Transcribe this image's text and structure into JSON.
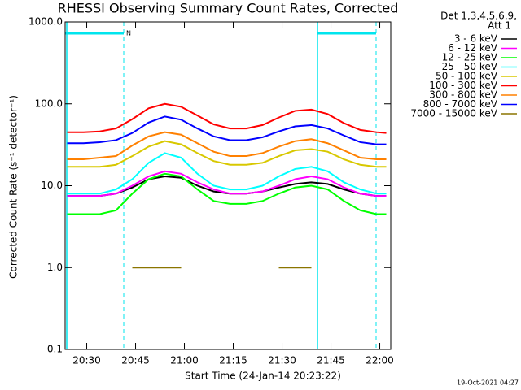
{
  "chart_data": {
    "type": "line",
    "title": "RHESSI Observing Summary Count Rates, Corrected",
    "xlabel": "Start Time (24-Jan-14 20:23:22)",
    "ylabel": "Corrected Count Rate (s⁻¹ detector⁻¹)",
    "legend_header": [
      "Det 1,3,4,5,6,9,",
      "Att 1"
    ],
    "timestamp": "19-Oct-2021 04:27",
    "annotation": "N",
    "log_y": true,
    "xlim": [
      23.37,
      123.37
    ],
    "ylim": [
      0.1,
      1000
    ],
    "xticks": [
      {
        "value": 30,
        "label": "20:30"
      },
      {
        "value": 45,
        "label": "20:45"
      },
      {
        "value": 60,
        "label": "21:00"
      },
      {
        "value": 75,
        "label": "21:15"
      },
      {
        "value": 90,
        "label": "21:30"
      },
      {
        "value": 105,
        "label": "21:45"
      },
      {
        "value": 120,
        "label": "22:00"
      }
    ],
    "yticks": [
      {
        "value": 0.1,
        "label": "0.1"
      },
      {
        "value": 1,
        "label": "1.0"
      },
      {
        "value": 10,
        "label": "10.0"
      },
      {
        "value": 100,
        "label": "100.0"
      },
      {
        "value": 1000,
        "label": "1000.0"
      }
    ],
    "flag_color": "#00e5ee",
    "flag_bars": [
      [
        23.37,
        41.37
      ],
      [
        100.87,
        118.87
      ]
    ],
    "solid_markers": [
      23.87,
      100.87
    ],
    "dashed_markers": [
      41.37,
      118.87
    ],
    "x": [
      24,
      29,
      34,
      39,
      44,
      49,
      54,
      59,
      64,
      69,
      74,
      79,
      84,
      89,
      94,
      99,
      104,
      109,
      114,
      119,
      122
    ],
    "series": [
      {
        "name": "3 - 6 keV",
        "color": "#000000",
        "values": [
          7.5,
          7.5,
          7.5,
          8,
          9.5,
          12,
          13,
          12.5,
          10,
          8.5,
          8,
          8,
          8.5,
          9.5,
          10.5,
          11,
          10.5,
          9,
          8,
          7.5,
          7.5
        ]
      },
      {
        "name": "6 - 12 keV",
        "color": "#ff00ff",
        "values": [
          7.5,
          7.5,
          7.5,
          8,
          10,
          13,
          15,
          14,
          11,
          9,
          8,
          8,
          8.5,
          10,
          12,
          13,
          12,
          9.5,
          8,
          7.5,
          7.5
        ]
      },
      {
        "name": "12 - 25 keV",
        "color": "#00ff00",
        "values": [
          4.5,
          4.5,
          4.5,
          5,
          8,
          12,
          14,
          13,
          9,
          6.5,
          6,
          6,
          6.5,
          8,
          9.5,
          10,
          9,
          6.5,
          5,
          4.5,
          4.5
        ]
      },
      {
        "name": "25 - 50 keV",
        "color": "#00ffff",
        "values": [
          8,
          8,
          8,
          9,
          12,
          19,
          25,
          22,
          14,
          10,
          9,
          9,
          10,
          13,
          16,
          17,
          15,
          11,
          9,
          8,
          8
        ]
      },
      {
        "name": "50 - 100 keV",
        "color": "#d8c800",
        "values": [
          17,
          17,
          17,
          18,
          23,
          30,
          35,
          32,
          25,
          20,
          18,
          18,
          19,
          23,
          27,
          28,
          26,
          21,
          18,
          17,
          17
        ]
      },
      {
        "name": "100 - 300 keV",
        "color": "#ff0000",
        "values": [
          45,
          45,
          46,
          50,
          65,
          88,
          100,
          92,
          72,
          56,
          50,
          50,
          55,
          68,
          82,
          85,
          75,
          58,
          48,
          45,
          44
        ]
      },
      {
        "name": "300 - 800 keV",
        "color": "#ff8000",
        "values": [
          21,
          21,
          22,
          23,
          31,
          40,
          45,
          42,
          33,
          26,
          23,
          23,
          25,
          30,
          35,
          37,
          33,
          27,
          22,
          21,
          21
        ]
      },
      {
        "name": "800 - 7000 keV",
        "color": "#0000ff",
        "values": [
          33,
          33,
          34,
          36,
          44,
          59,
          70,
          64,
          50,
          40,
          36,
          36,
          39,
          46,
          53,
          55,
          50,
          41,
          34,
          32,
          32
        ]
      },
      {
        "name": "7000 - 15000 keV",
        "color": "#8b7500",
        "values": [
          null,
          null,
          null,
          null,
          1,
          1,
          1,
          1,
          null,
          null,
          null,
          null,
          null,
          1,
          1,
          1,
          null,
          null,
          null,
          null,
          null
        ]
      }
    ]
  }
}
